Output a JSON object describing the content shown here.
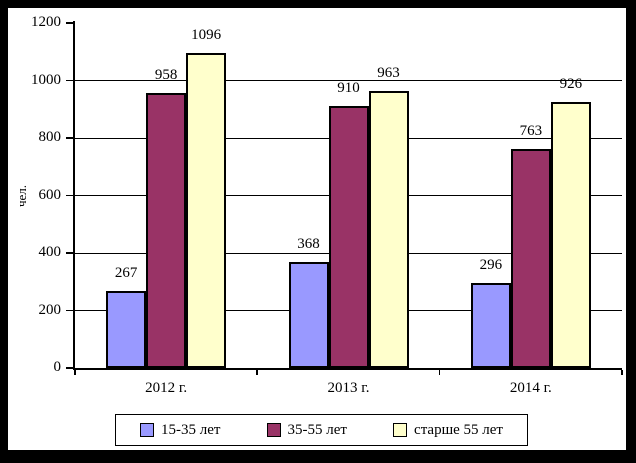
{
  "chart_data": {
    "type": "bar",
    "title": "",
    "categories": [
      "2012 г.",
      "2013 г.",
      "2014 г."
    ],
    "series": [
      {
        "name": "15-35 лет",
        "color": "#9999FF",
        "values": [
          267,
          368,
          296
        ]
      },
      {
        "name": "35-55 лет",
        "color": "#993366",
        "values": [
          958,
          910,
          763
        ]
      },
      {
        "name": "старше 55 лет",
        "color": "#FFFFCC",
        "values": [
          1096,
          963,
          926
        ]
      }
    ],
    "xlabel": "",
    "ylabel": "чел.",
    "ylim": [
      0,
      1200
    ],
    "yticks": [
      0,
      200,
      400,
      600,
      800,
      1000,
      1200
    ],
    "grid": true,
    "gridline_color": "#000000",
    "bar_border_color": "#000000",
    "data_labels": true,
    "legend_position": "bottom",
    "background_color": "#FFFFFF",
    "frame_color": "#000000"
  }
}
